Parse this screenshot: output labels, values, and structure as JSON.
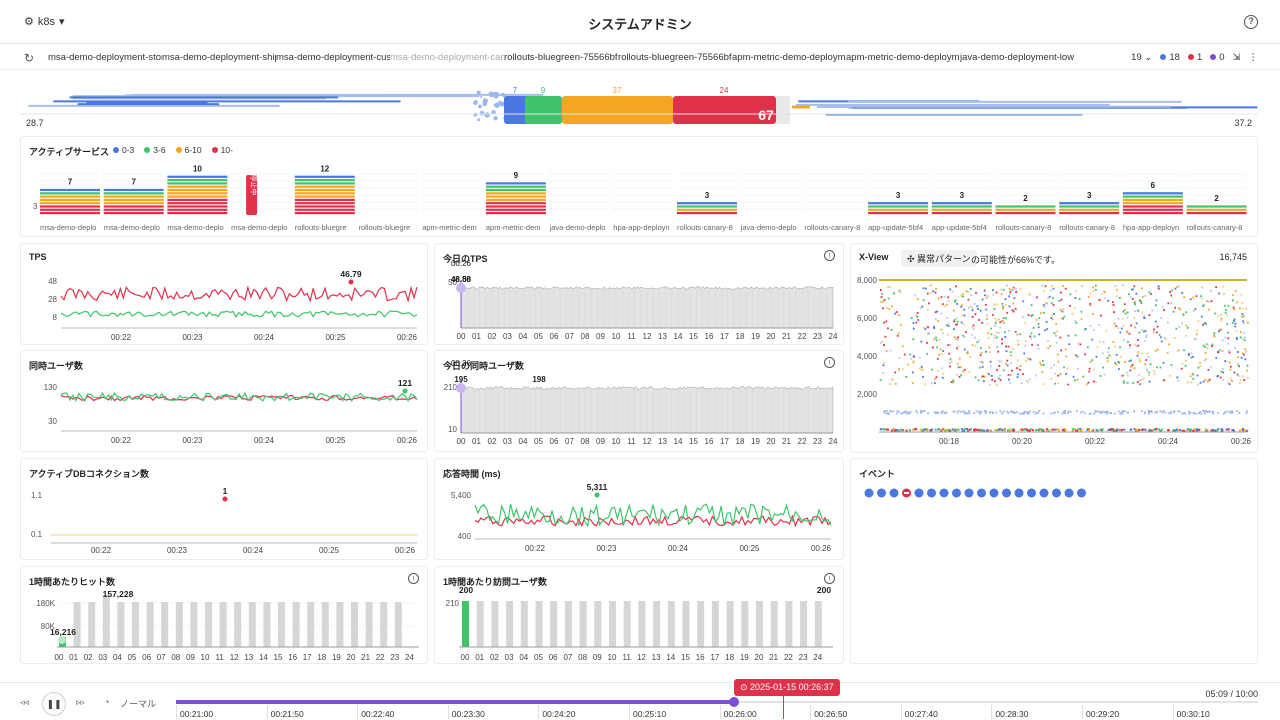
{
  "header": {
    "context": "k8s",
    "title": "システムアドミン"
  },
  "tabs": [
    "msa-demo-deployment-stor",
    "msa-demo-deployment-ship",
    "msa-demo-deployment-cus",
    "msa-demo-deployment-cart",
    "rollouts-bluegreen-75566bf",
    "rollouts-bluegreen-75566bf",
    "apm-metric-demo-deploym",
    "apm-metric-demo-deploym",
    "java-demo-deployment-low"
  ],
  "tab_controls": {
    "count": "19",
    "blue": "18",
    "red": "1",
    "purple": "0"
  },
  "flow": {
    "left_value": "28.7",
    "right_value": "37.2",
    "segments": [
      "7",
      "9",
      "37",
      "24"
    ],
    "total": "67"
  },
  "active_services": {
    "title": "アクティブサービス",
    "legend": [
      "0-3",
      "3-6",
      "6-10",
      "10-"
    ],
    "ytick": "3",
    "stop_label": "停止中",
    "items": [
      {
        "name": "msa-demo-deplo",
        "count": "7"
      },
      {
        "name": "msa-demo-deplo",
        "count": "7"
      },
      {
        "name": "msa-demo-deplo",
        "count": "10"
      },
      {
        "name": "msa-demo-deplo",
        "count": ""
      },
      {
        "name": "rollouts-bluegre",
        "count": "12"
      },
      {
        "name": "rollouts-bluegre",
        "count": ""
      },
      {
        "name": "apm-metric-dem",
        "count": ""
      },
      {
        "name": "apm-metric-dem",
        "count": "9"
      },
      {
        "name": "java-demo-deplo",
        "count": ""
      },
      {
        "name": "hpa-app-deployn",
        "count": ""
      },
      {
        "name": "rollouts-canary-8",
        "count": "3"
      },
      {
        "name": "java-demo-deplo",
        "count": ""
      },
      {
        "name": "rollouts-canary-8",
        "count": ""
      },
      {
        "name": "app-update-5bf4",
        "count": "3"
      },
      {
        "name": "app-update-5bf4",
        "count": "3"
      },
      {
        "name": "rollouts-canary-8",
        "count": "2"
      },
      {
        "name": "rollouts-canary-8",
        "count": "3"
      },
      {
        "name": "hpa-app-deployn",
        "count": "6"
      },
      {
        "name": "rollouts-canary-8",
        "count": "2"
      }
    ]
  },
  "panels": {
    "tps": {
      "title": "TPS",
      "yticks": [
        "48",
        "28",
        "8"
      ],
      "xticks": [
        "00:22",
        "00:23",
        "00:24",
        "00:25",
        "00:26"
      ],
      "peak": "46.79"
    },
    "today_tps": {
      "title": "今日のTPS",
      "time": "00:26",
      "val1": "48.50",
      "val2": "46.08",
      "ytick": "50",
      "xticks": [
        "00",
        "01",
        "02",
        "03",
        "04",
        "05",
        "06",
        "07",
        "08",
        "09",
        "10",
        "11",
        "12",
        "13",
        "14",
        "15",
        "16",
        "17",
        "18",
        "19",
        "20",
        "21",
        "22",
        "23",
        "24"
      ]
    },
    "xview": {
      "title": "X-View",
      "chip": "異常パターン",
      "note": "の可能性が66%です。",
      "count": "16,745",
      "yticks": [
        "8,000",
        "6,000",
        "4,000",
        "2,000"
      ],
      "xticks": [
        "00:18",
        "00:20",
        "00:22",
        "00:24",
        "00:26"
      ]
    },
    "users": {
      "title": "同時ユーザ数",
      "yticks": [
        "130",
        "30"
      ],
      "xticks": [
        "00:22",
        "00:23",
        "00:24",
        "00:25",
        "00:26"
      ],
      "peak": "121"
    },
    "today_users": {
      "title": "今日の同時ユーザ数",
      "time": "00:26",
      "val1": "195",
      "val2": "198",
      "yticks": [
        "210",
        "10"
      ],
      "xticks": [
        "00",
        "01",
        "02",
        "03",
        "04",
        "05",
        "06",
        "07",
        "08",
        "09",
        "10",
        "11",
        "12",
        "13",
        "14",
        "15",
        "16",
        "17",
        "18",
        "19",
        "20",
        "21",
        "22",
        "23",
        "24"
      ]
    },
    "db": {
      "title": "アクティブDBコネクション数",
      "yticks": [
        "1.1",
        "0.1"
      ],
      "xticks": [
        "00:22",
        "00:23",
        "00:24",
        "00:25",
        "00:26"
      ],
      "value": "1"
    },
    "response": {
      "title": "応答時間 (ms)",
      "yticks": [
        "5,400",
        "400"
      ],
      "xticks": [
        "00:22",
        "00:23",
        "00:24",
        "00:25",
        "00:26"
      ],
      "peak": "5,311"
    },
    "events": {
      "title": "イベント"
    },
    "hits": {
      "title": "1時間あたりヒット数",
      "yticks": [
        "180K",
        "80K"
      ],
      "xticks": [
        "00",
        "01",
        "02",
        "03",
        "04",
        "05",
        "06",
        "07",
        "08",
        "09",
        "10",
        "11",
        "12",
        "13",
        "14",
        "15",
        "16",
        "17",
        "18",
        "19",
        "20",
        "21",
        "22",
        "23",
        "24"
      ],
      "peak": "157,228",
      "low": "16,216"
    },
    "visitors": {
      "title": "1時間あたり訪問ユーザ数",
      "ytick": "210",
      "xticks": [
        "00",
        "01",
        "02",
        "03",
        "04",
        "05",
        "06",
        "07",
        "08",
        "09",
        "10",
        "11",
        "12",
        "13",
        "14",
        "15",
        "16",
        "17",
        "18",
        "19",
        "20",
        "21",
        "22",
        "23",
        "24"
      ],
      "first": "200",
      "last": "200"
    }
  },
  "playback": {
    "speed": "ノーマル",
    "current": "2025-01-15 00:26:37",
    "position": "05:09 / 10:00",
    "ticks": [
      "00:21:00",
      "00:21:50",
      "00:22:40",
      "00:23:30",
      "00:24:20",
      "00:25:10",
      "00:26:00",
      "00:26:50",
      "00:27:40",
      "00:28:30",
      "00:29:20",
      "00:30:10"
    ]
  },
  "colors": {
    "blue": "#4a78e0",
    "green": "#3fc46a",
    "orange": "#f5a623",
    "red": "#e0314b",
    "purple": "#7b4fd8"
  }
}
